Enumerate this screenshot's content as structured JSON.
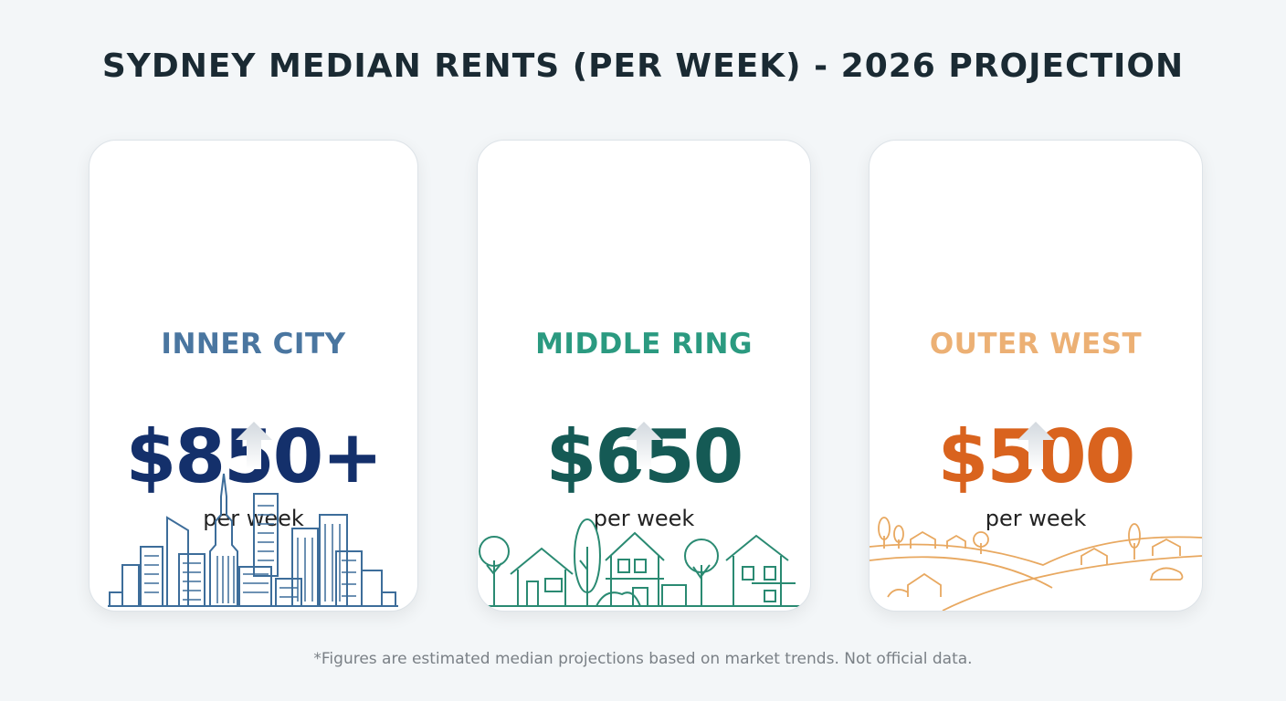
{
  "title": "SYDNEY MEDIAN RENTS (PER WEEK) - 2026 PROJECTION",
  "cards": [
    {
      "region": "INNER CITY",
      "price": "$850+",
      "unit": "per week",
      "icon": "city-skyline-icon",
      "title_color": "#4a76a0",
      "price_color": "#14306b",
      "line_color": "#3d6d9a"
    },
    {
      "region": "MIDDLE RING",
      "price": "$650",
      "unit": "per week",
      "icon": "suburban-houses-icon",
      "title_color": "#2b9a80",
      "price_color": "#155a55",
      "line_color": "#2a8a72"
    },
    {
      "region": "OUTER WEST",
      "price": "$500",
      "unit": "per week",
      "icon": "rural-hills-icon",
      "title_color": "#ecb074",
      "price_color": "#d9631e",
      "line_color": "#e8a860"
    }
  ],
  "footnote": "*Figures are estimated median projections based on market trends. Not official data."
}
